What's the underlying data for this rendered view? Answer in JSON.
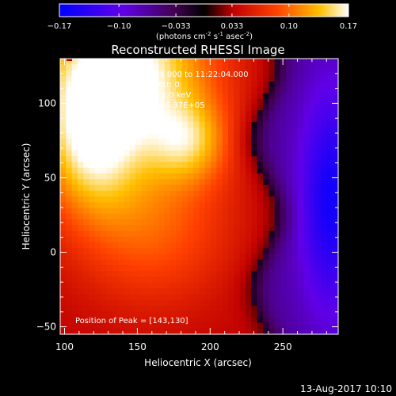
{
  "chart_data": {
    "type": "heatmap",
    "title": "Reconstructed RHESSI Image",
    "xlabel": "Heliocentric X (arcsec)",
    "ylabel": "Heliocentric Y (arcsec)",
    "xlim": [
      97,
      288
    ],
    "ylim": [
      -55,
      130
    ],
    "x_ticks": [
      "100",
      "150",
      "200",
      "250"
    ],
    "y_ticks": [
      "-50",
      "0",
      "50",
      "100"
    ],
    "colorbar": {
      "range": [
        -0.17,
        0.17
      ],
      "tick_labels": [
        "-0.17",
        "-0.10",
        "-0.033",
        "0.033",
        "0.10",
        "0.17"
      ],
      "units_main": "(photons cm",
      "units_exp1": "-2",
      "units_mid": " s",
      "units_exp2": "-1",
      "units_tail": " asec",
      "units_exp3": "-2",
      "units_close": ")"
    },
    "annotations": {
      "line1": "27-Nov-2017 11:12:04.000 to 11:22:04.000",
      "line2": "Detectors: 3F 8F 9F, Att: 0",
      "line3": "Energy Range: 6.0 - 12.0 keV",
      "line4": "Clean      Total counts: 5.37E+05",
      "peak": "Position of Peak = [143,130]"
    },
    "peak": [
      143,
      130
    ],
    "grid": false,
    "legend": "none",
    "colors": {
      "max": "#ffffff",
      "high": "#ffff00",
      "mid": "#ff2000",
      "zero": "#000000",
      "neg": "#8000ff",
      "min": "#0000ff"
    }
  },
  "footer": {
    "timestamp": "13-Aug-2017 10:10"
  }
}
